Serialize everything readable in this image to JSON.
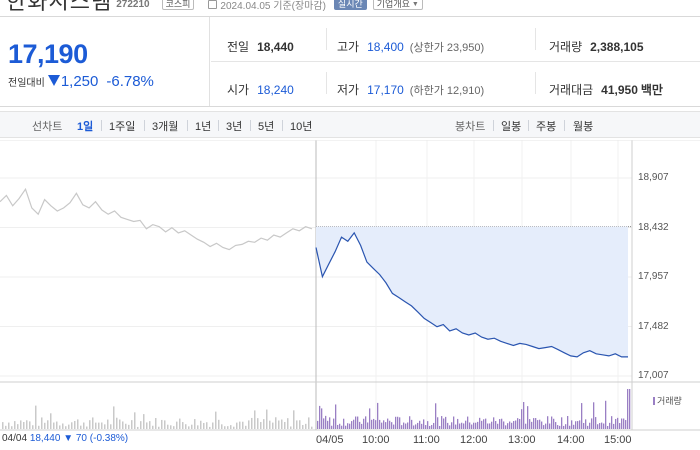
{
  "header": {
    "stock_name": "한화시스템",
    "stock_code": "272210",
    "market": "코스피",
    "date_label": "2024.04.05 기준(장마감)",
    "realtime_label": "실시간",
    "company_label": "기업개요"
  },
  "price": {
    "current": "17,190",
    "change_label": "전일대비",
    "change_amount": "1,250",
    "change_pct": "-6.78%",
    "direction": "down"
  },
  "stats": {
    "prev_close_label": "전일",
    "prev_close": "18,440",
    "high_label": "고가",
    "high": "18,400",
    "upper_limit": "(상한가 23,950)",
    "volume_label": "거래량",
    "volume": "2,388,105",
    "open_label": "시가",
    "open": "18,240",
    "low_label": "저가",
    "low": "17,170",
    "lower_limit": "(하한가 12,910)",
    "trade_value_label": "거래대금",
    "trade_value": "41,950",
    "trade_value_unit": "백만"
  },
  "tabs": {
    "line_chart_label": "선차트",
    "periods": [
      "1일",
      "1주일",
      "3개월",
      "1년",
      "3년",
      "5년",
      "10년"
    ],
    "candle_label": "봉차트",
    "candles": [
      "일봉",
      "주봉",
      "월봉"
    ]
  },
  "chart_data": {
    "type": "line",
    "y_ticks": [
      "18,907",
      "18,432",
      "17,957",
      "17,482",
      "17,007"
    ],
    "ylim": [
      17007,
      18907
    ],
    "x_ticks": [
      "04/04",
      "04/05",
      "10:00",
      "11:00",
      "12:00",
      "13:00",
      "14:00",
      "15:00"
    ],
    "reference_line": 18440,
    "series": [
      {
        "name": "04/04",
        "values": [
          18680,
          18740,
          18640,
          18710,
          18800,
          18620,
          18560,
          18700,
          18640,
          18590,
          18620,
          18670,
          18760,
          18650,
          18620,
          18680,
          18600,
          18560,
          18590,
          18530,
          18510,
          18490,
          18500,
          18420,
          18460,
          18440,
          18390,
          18430,
          18380,
          18400,
          18360,
          18320,
          18290,
          18250,
          18280,
          18240,
          18220,
          18260,
          18270,
          18300,
          18290,
          18330,
          18310,
          18360,
          18340,
          18380,
          18420,
          18400,
          18440,
          18420
        ]
      },
      {
        "name": "04/05",
        "values": [
          18240,
          17960,
          18080,
          18200,
          18340,
          18300,
          18380,
          18260,
          18100,
          18040,
          17980,
          17900,
          17800,
          17760,
          17720,
          17680,
          17620,
          17560,
          17520,
          17480,
          17500,
          17440,
          17460,
          17420,
          17400,
          17420,
          17380,
          17360,
          17370,
          17340,
          17320,
          17300,
          17320,
          17310,
          17290,
          17270,
          17280,
          17290,
          17260,
          17230,
          17200,
          17190,
          17230,
          17250,
          17220,
          17210,
          17200,
          17220,
          17190,
          17190
        ]
      }
    ],
    "volume_label": "거래량",
    "prev_day_info": {
      "date": "04/04",
      "price": "18,440",
      "change": "70",
      "pct": "(-0.38%)"
    }
  },
  "colors": {
    "accent": "#1c5bd6",
    "prev_line": "#c8c8c8",
    "cur_line": "#2a55b0",
    "fill": "#e5edfb",
    "volume": "#9a7fc4"
  }
}
